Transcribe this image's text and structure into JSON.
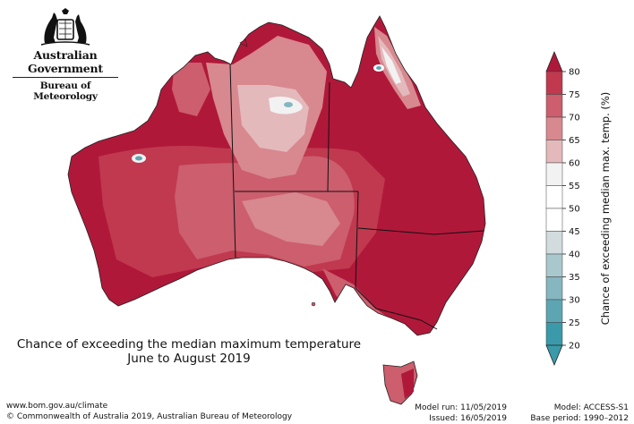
{
  "logo": {
    "line1": "Australian Government",
    "line2": "Bureau of Meteorology",
    "emblem": "commonwealth-coat-of-arms"
  },
  "map": {
    "title_line1": "Chance of exceeding the median maximum temperature",
    "title_line2": "June to August 2019",
    "region": "Australia",
    "borders": [
      "Western Australia",
      "Northern Territory",
      "South Australia",
      "Queensland",
      "New South Wales",
      "Victoria",
      "Tasmania"
    ]
  },
  "legend": {
    "label": "Chance of exceeding median max. temp. (%)",
    "ticks": [
      80,
      75,
      70,
      65,
      60,
      55,
      50,
      45,
      40,
      35,
      30,
      25,
      20
    ],
    "colors": [
      "#b0183a",
      "#c0394f",
      "#cc5e6d",
      "#d8888f",
      "#e4b9bc",
      "#f2f2f2",
      "#ffffff",
      "#ffffff",
      "#d2dcde",
      "#a8c8cd",
      "#86b6bf",
      "#5ea5b3",
      "#3a9aa9"
    ],
    "top_arrow_color": "#b0183a",
    "bottom_arrow_color": "#3a9aa9"
  },
  "footer": {
    "url": "www.bom.gov.au/climate",
    "copyright": "© Commonwealth of Australia 2019, Australian Bureau of Meteorology",
    "model_run": "Model run: 11/05/2019",
    "issued": "Issued: 16/05/2019",
    "model": "Model: ACCESS-S1",
    "base_period": "Base period: 1990–2012"
  }
}
